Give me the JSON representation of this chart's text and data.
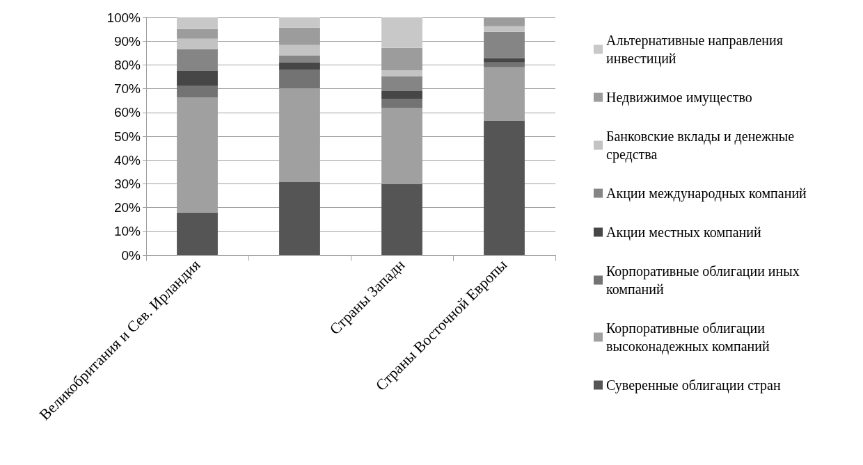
{
  "chart_data": {
    "type": "bar",
    "stacked": true,
    "categories": [
      "Великобритания и Сев. Ирландия",
      null,
      "Страны Западн",
      "Страны Восточной Европы"
    ],
    "series": [
      {
        "name": "Суверенные облигации стран",
        "color": "#555555",
        "values": [
          17.9,
          30.7,
          29.8,
          56.4
        ]
      },
      {
        "name": "Корпоративные облигации высоконадежных компаний",
        "color": "#a0a0a0",
        "values": [
          48.5,
          39.5,
          32.2,
          22.6
        ]
      },
      {
        "name": "Корпоративные облигации иных компаний",
        "color": "#737373",
        "values": [
          4.7,
          7.9,
          3.8,
          2.1
        ]
      },
      {
        "name": "Акции местных компаний",
        "color": "#464646",
        "values": [
          6.4,
          3.0,
          3.2,
          1.7
        ]
      },
      {
        "name": "Акции международных компаний",
        "color": "#858585",
        "values": [
          9.1,
          2.9,
          6.2,
          11.1
        ]
      },
      {
        "name": "Банковские вклады и денежные средства",
        "color": "#c3c3c3",
        "values": [
          4.4,
          4.4,
          2.6,
          2.4
        ]
      },
      {
        "name": "Недвижимое имущество",
        "color": "#9c9c9c",
        "values": [
          4.1,
          7.3,
          9.4,
          3.7
        ]
      },
      {
        "name": "Альтернативные направления инвестиций",
        "color": "#c8c8c8",
        "values": [
          4.9,
          4.3,
          12.8,
          0
        ]
      }
    ],
    "ylim": [
      0,
      100
    ],
    "yticks": [
      {
        "value": 0,
        "label": "0%"
      },
      {
        "value": 10,
        "label": "10%"
      },
      {
        "value": 20,
        "label": "20%"
      },
      {
        "value": 30,
        "label": "30%"
      },
      {
        "value": 40,
        "label": "40%"
      },
      {
        "value": 50,
        "label": "50%"
      },
      {
        "value": 60,
        "label": "60%"
      },
      {
        "value": 70,
        "label": "70%"
      },
      {
        "value": 80,
        "label": "80%"
      },
      {
        "value": 90,
        "label": "90%"
      },
      {
        "value": 100,
        "label": "100%"
      }
    ],
    "grid": "y",
    "legend": "right"
  }
}
